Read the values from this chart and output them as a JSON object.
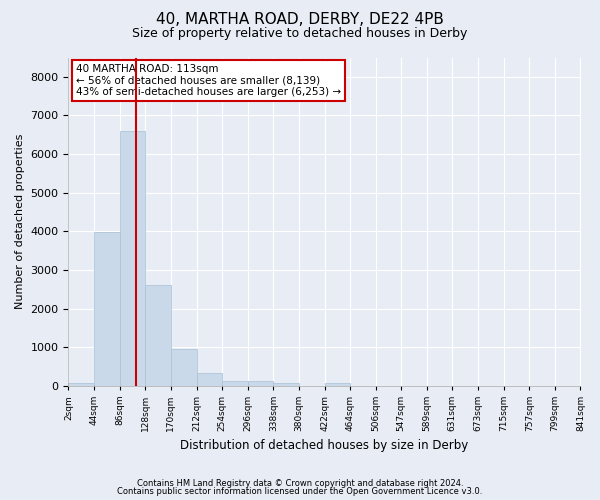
{
  "title_line1": "40, MARTHA ROAD, DERBY, DE22 4PB",
  "title_line2": "Size of property relative to detached houses in Derby",
  "xlabel": "Distribution of detached houses by size in Derby",
  "ylabel": "Number of detached properties",
  "bar_color": "#cad9ea",
  "bar_edgecolor": "#a8c0d6",
  "vline_x": 113,
  "vline_color": "#cc0000",
  "annotation_lines": [
    "40 MARTHA ROAD: 113sqm",
    "← 56% of detached houses are smaller (8,139)",
    "43% of semi-detached houses are larger (6,253) →"
  ],
  "annotation_box_edgecolor": "#cc0000",
  "annotation_box_facecolor": "#ffffff",
  "bin_edges": [
    2,
    44,
    86,
    128,
    170,
    212,
    254,
    296,
    338,
    380,
    422,
    464,
    506,
    547,
    589,
    631,
    673,
    715,
    757,
    799,
    841
  ],
  "bar_heights": [
    75,
    3980,
    6600,
    2620,
    960,
    320,
    130,
    120,
    70,
    0,
    70,
    0,
    0,
    0,
    0,
    0,
    0,
    0,
    0,
    0
  ],
  "ylim": [
    0,
    8500
  ],
  "yticks": [
    0,
    1000,
    2000,
    3000,
    4000,
    5000,
    6000,
    7000,
    8000
  ],
  "background_color": "#e8edf5",
  "plot_bg_color": "#e8edf5",
  "grid_color": "#ffffff",
  "footnote1": "Contains HM Land Registry data © Crown copyright and database right 2024.",
  "footnote2": "Contains public sector information licensed under the Open Government Licence v3.0."
}
